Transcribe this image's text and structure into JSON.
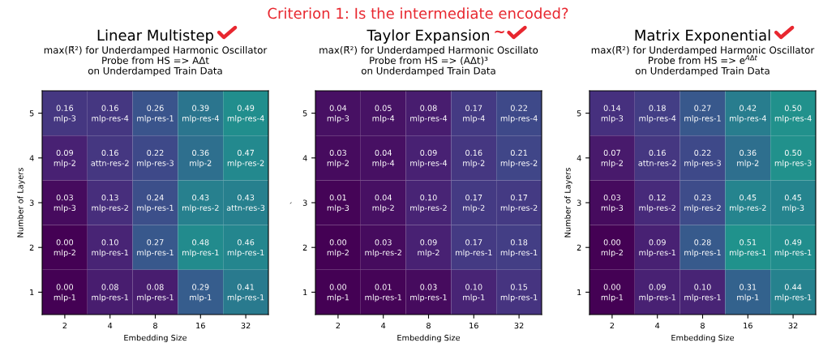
{
  "chart_data": [
    {
      "type": "heatmap",
      "data_labels": true,
      "title": "Linear Multistep",
      "subtitle": "max(R̄²) for Underdamped Harmonic Oscillator\nProbe from HS => AΔt\non Underdamped Train Data",
      "xlabel": "Embedding Size",
      "ylabel": "Number of Layers",
      "categories": [
        "2",
        "4",
        "8",
        "16",
        "32"
      ],
      "y_categories": [
        "5",
        "4",
        "3",
        "2",
        "1"
      ],
      "cells": [
        [
          0.16,
          0.16,
          0.26,
          0.39,
          0.49
        ],
        [
          0.09,
          0.16,
          0.22,
          0.36,
          0.47
        ],
        [
          0.03,
          0.13,
          0.24,
          0.43,
          0.43
        ],
        [
          0.0,
          0.1,
          0.27,
          0.48,
          0.46
        ],
        [
          0.0,
          0.08,
          0.08,
          0.29,
          0.41
        ]
      ],
      "cell_labels": [
        [
          "0.16",
          "0.16",
          "0.26",
          "0.39",
          "0.49"
        ],
        [
          "0.09",
          "0.16",
          "0.22",
          "0.36",
          "0.47"
        ],
        [
          "0.03",
          "0.13",
          "0.24",
          "0.43",
          "0.43"
        ],
        [
          "0.00",
          "0.10",
          "0.27",
          "0.48",
          "0.46"
        ],
        [
          "0.00",
          "0.08",
          "0.08",
          "0.29",
          "0.41"
        ]
      ],
      "annotations": [
        "Criterion 1: Is the intermediate encoded?",
        "mlp-3",
        "mlp-res-4",
        "mlp-res-1",
        "mlp-res-4",
        "mlp-res-4",
        "mlp-2",
        "attn-res-2",
        "mlp-res-3",
        "mlp-2",
        "mlp-res-2",
        "mlp-3",
        "mlp-res-2",
        "mlp-res-1",
        "mlp-res-2",
        "attn-res-3",
        "mlp-2",
        "mlp-res-1",
        "mlp-res-1",
        "mlp-res-1",
        "mlp-res-1",
        "mlp-1",
        "mlp-res-1",
        "mlp-res-1",
        "mlp-1",
        "mlp-res-1"
      ]
    },
    {
      "type": "heatmap",
      "data_labels": true,
      "title": "Taylor Expansion",
      "subtitle": "max(R̄²) for Underdamped Harmonic Oscillato\nProbe from HS => (AΔt)³\non Underdamped Train Data",
      "xlabel": "Embedding Size",
      "ylabel": "`",
      "categories": [
        "2",
        "4",
        "8",
        "16",
        "32"
      ],
      "y_categories": [
        "5",
        "4",
        "3",
        "2",
        "1"
      ],
      "cells": [
        [
          0.04,
          0.05,
          0.08,
          0.17,
          0.22
        ],
        [
          0.03,
          0.04,
          0.09,
          0.16,
          0.21
        ],
        [
          0.01,
          0.04,
          0.1,
          0.17,
          0.17
        ],
        [
          0.0,
          0.03,
          0.09,
          0.17,
          0.18
        ],
        [
          0.0,
          0.01,
          0.03,
          0.1,
          0.15
        ]
      ],
      "cell_labels": [
        [
          "0.04",
          "0.05",
          "0.08",
          "0.17",
          "0.22"
        ],
        [
          "0.03",
          "0.04",
          "0.09",
          "0.16",
          "0.21"
        ],
        [
          "0.01",
          "0.04",
          "0.10",
          "0.17",
          "0.17"
        ],
        [
          "0.00",
          "0.03",
          "0.09",
          "0.17",
          "0.18"
        ],
        [
          "0.00",
          "0.01",
          "0.03",
          "0.10",
          "0.15"
        ]
      ],
      "annotations": [
        "~",
        "mlp-3",
        "mlp-4",
        "mlp-res-4",
        "mlp-4",
        "mlp-res-4",
        "mlp-2",
        "mlp-4",
        "mlp-res-4",
        "mlp-2",
        "mlp-res-2",
        "mlp-3",
        "mlp-2",
        "mlp-res-2",
        "mlp-2",
        "mlp-res-2",
        "mlp-2",
        "mlp-res-2",
        "mlp-2",
        "mlp-res-1",
        "mlp-res-1",
        "mlp-1",
        "mlp-res-1",
        "mlp-res-1",
        "mlp-1",
        "mlp-res-1"
      ]
    },
    {
      "type": "heatmap",
      "data_labels": true,
      "title": "Matrix Exponential",
      "subtitle": "max(R̄²) for Underdamped Harmonic Oscillator\nProbe from HS => e$^{AΔt}$\non Underdamped Train Data",
      "xlabel": "Embedding Size",
      "ylabel": "Number of Layers",
      "categories": [
        "2",
        "4",
        "8",
        "16",
        "32"
      ],
      "y_categories": [
        "5",
        "4",
        "3",
        "2",
        "1"
      ],
      "cells": [
        [
          0.14,
          0.18,
          0.27,
          0.42,
          0.5
        ],
        [
          0.07,
          0.16,
          0.22,
          0.36,
          0.5
        ],
        [
          0.03,
          0.12,
          0.23,
          0.45,
          0.45
        ],
        [
          0.0,
          0.09,
          0.28,
          0.51,
          0.49
        ],
        [
          0.0,
          0.09,
          0.1,
          0.31,
          0.44
        ]
      ],
      "cell_labels": [
        [
          "0.14",
          "0.18",
          "0.27",
          "0.42",
          "0.50"
        ],
        [
          "0.07",
          "0.16",
          "0.22",
          "0.36",
          "0.50"
        ],
        [
          "0.03",
          "0.12",
          "0.23",
          "0.45",
          "0.45"
        ],
        [
          "0.00",
          "0.09",
          "0.28",
          "0.51",
          "0.49"
        ],
        [
          "0.00",
          "0.09",
          "0.10",
          "0.31",
          "0.44"
        ]
      ],
      "annotations": [
        "mlp-3",
        "mlp-res-4",
        "mlp-res-1",
        "mlp-res-4",
        "mlp-res-4",
        "mlp-2",
        "attn-res-2",
        "mlp-res-3",
        "mlp-2",
        "mlp-res-3",
        "mlp-3",
        "mlp-res-2",
        "mlp-res-2",
        "mlp-res-2",
        "mlp-3",
        "mlp-2",
        "mlp-res-1",
        "mlp-res-1",
        "mlp-res-1",
        "mlp-res-1",
        "mlp-1",
        "mlp-res-1",
        "mlp-res-1",
        "mlp-1",
        "mlp-res-1"
      ]
    }
  ]
}
